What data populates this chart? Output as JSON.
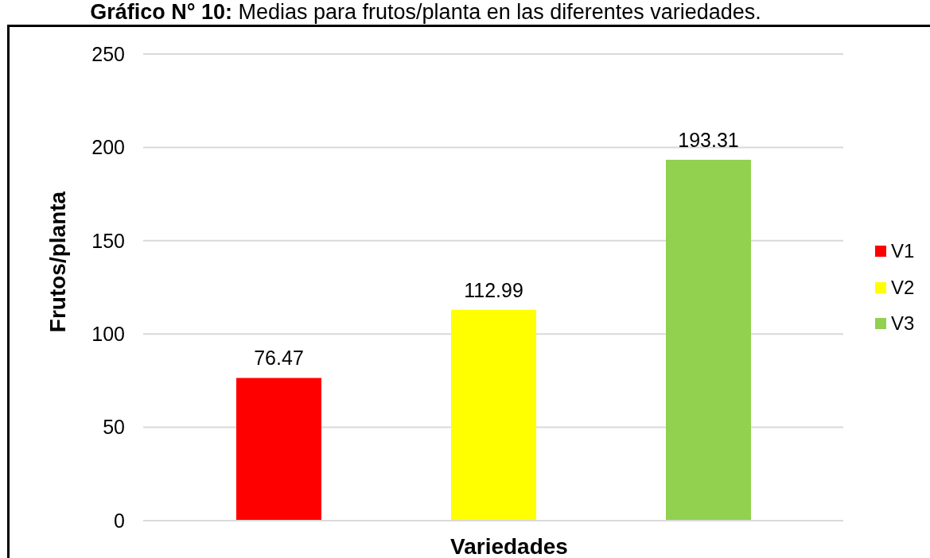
{
  "chart_data": {
    "type": "bar",
    "title": "Gráfico N° 10: Medias para frutos/planta en las diferentes variedades.",
    "xlabel": "Variedades",
    "ylabel": "Frutos/planta",
    "categories": [
      null
    ],
    "series": [
      {
        "name": "V1",
        "color": "#ff0000",
        "values": [
          76.47
        ]
      },
      {
        "name": "V2",
        "color": "#ffff00",
        "values": [
          112.99
        ]
      },
      {
        "name": "V3",
        "color": "#92d050",
        "values": [
          193.31
        ]
      }
    ],
    "ylim": [
      0,
      250
    ],
    "yticks": [
      0,
      50,
      100,
      150,
      200,
      250
    ],
    "grid": "y",
    "legend": "right",
    "data_labels": true
  }
}
